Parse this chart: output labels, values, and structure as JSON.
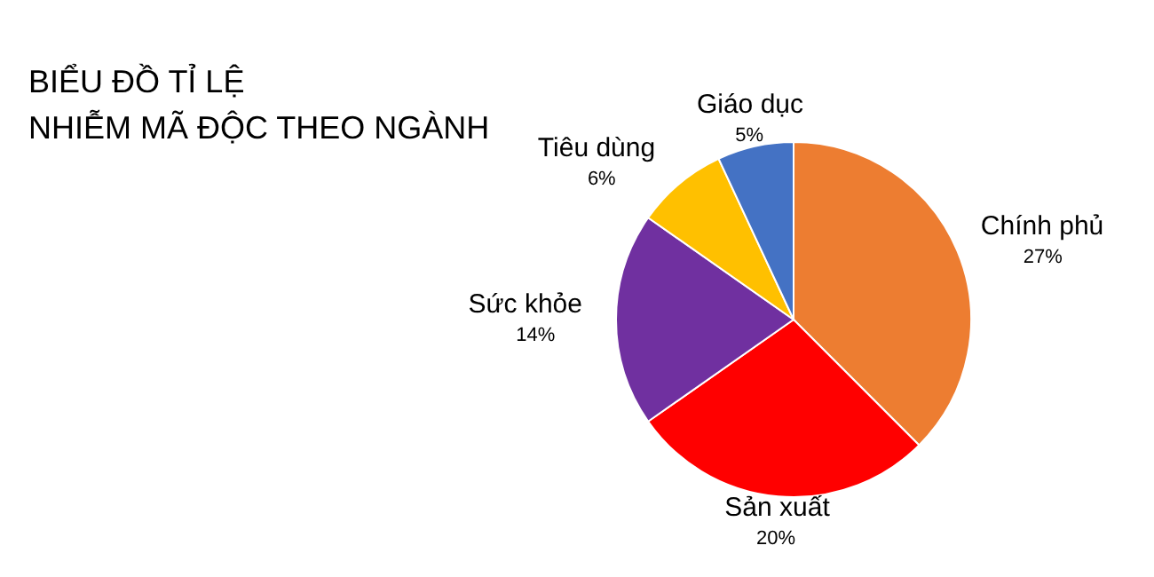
{
  "chart_data": {
    "type": "pie",
    "title": "BIỂU ĐỒ TỈ LỆ\nNHIỄM MÃ ĐỘC THEO NGÀNH",
    "categories": [
      "Chính phủ",
      "Sản xuất",
      "Sức khỏe",
      "Tiêu dùng",
      "Giáo dục"
    ],
    "values": [
      27,
      20,
      14,
      6,
      5
    ],
    "colors": [
      "#ed7d31",
      "#ff0000",
      "#7030a0",
      "#ffc000",
      "#4472c4"
    ],
    "value_labels": [
      "27%",
      "20%",
      "14%",
      "6%",
      "5%"
    ]
  }
}
